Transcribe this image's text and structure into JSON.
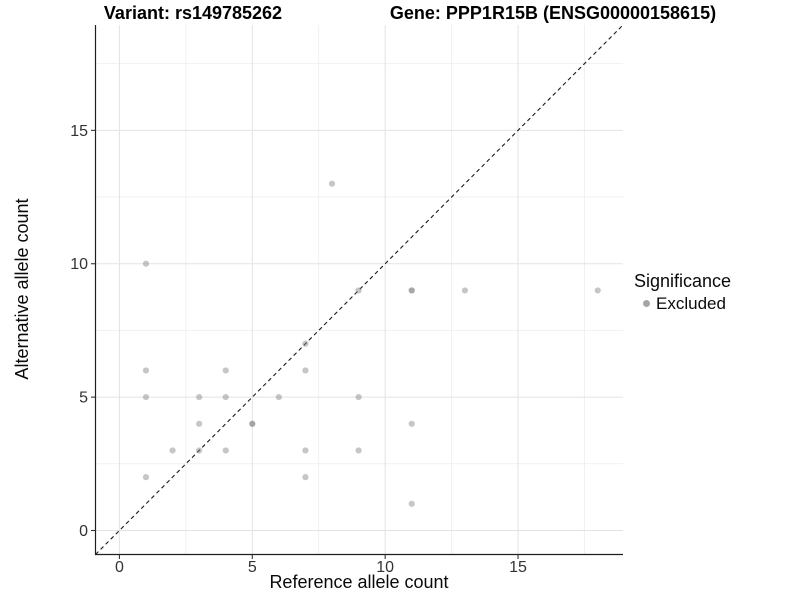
{
  "chart_data": {
    "type": "scatter",
    "title_variant": "Variant: rs149785262",
    "title_gene": "Gene: PPP1R15B (ENSG00000158615)",
    "xlabel": "Reference allele count",
    "ylabel": "Alternative allele count",
    "xlim": [
      -0.9,
      18.95
    ],
    "ylim": [
      -0.9,
      18.95
    ],
    "x_ticks": [
      0,
      5,
      10,
      15
    ],
    "y_ticks": [
      0,
      5,
      10,
      15
    ],
    "x_minor_ticks": [
      2.5,
      7.5,
      12.5,
      17.5
    ],
    "y_minor_ticks": [
      2.5,
      7.5,
      12.5,
      17.5
    ],
    "grid": true,
    "legend_position": "right",
    "identity_line": {
      "style": "dashed",
      "equation": "y = x",
      "color": "#1a1a1a"
    },
    "series": [
      {
        "name": "Excluded",
        "points": [
          [
            1,
            2
          ],
          [
            1,
            5
          ],
          [
            1,
            6
          ],
          [
            1,
            10
          ],
          [
            2,
            3
          ],
          [
            3,
            3
          ],
          [
            3,
            4
          ],
          [
            3,
            5
          ],
          [
            4,
            3
          ],
          [
            4,
            5
          ],
          [
            4,
            6
          ],
          [
            5,
            4
          ],
          [
            5,
            4
          ],
          [
            6,
            5
          ],
          [
            7,
            2
          ],
          [
            7,
            3
          ],
          [
            7,
            6
          ],
          [
            7,
            7
          ],
          [
            8,
            13
          ],
          [
            9,
            3
          ],
          [
            9,
            5
          ],
          [
            9,
            9
          ],
          [
            11,
            1
          ],
          [
            11,
            4
          ],
          [
            11,
            9
          ],
          [
            11,
            9
          ],
          [
            13,
            9
          ],
          [
            18,
            9
          ]
        ]
      }
    ],
    "legend": {
      "title": "Significance",
      "items": [
        {
          "label": "Excluded",
          "color": "#a6a6a6"
        }
      ]
    },
    "colors": {
      "point": "rgba(128,128,128,0.45)",
      "grid_major": "#e3e3e3",
      "grid_minor": "#f1f1f1",
      "axis_line": "#1f1f1f",
      "tick_mark": "#333333",
      "tick_label": "#333333"
    }
  }
}
